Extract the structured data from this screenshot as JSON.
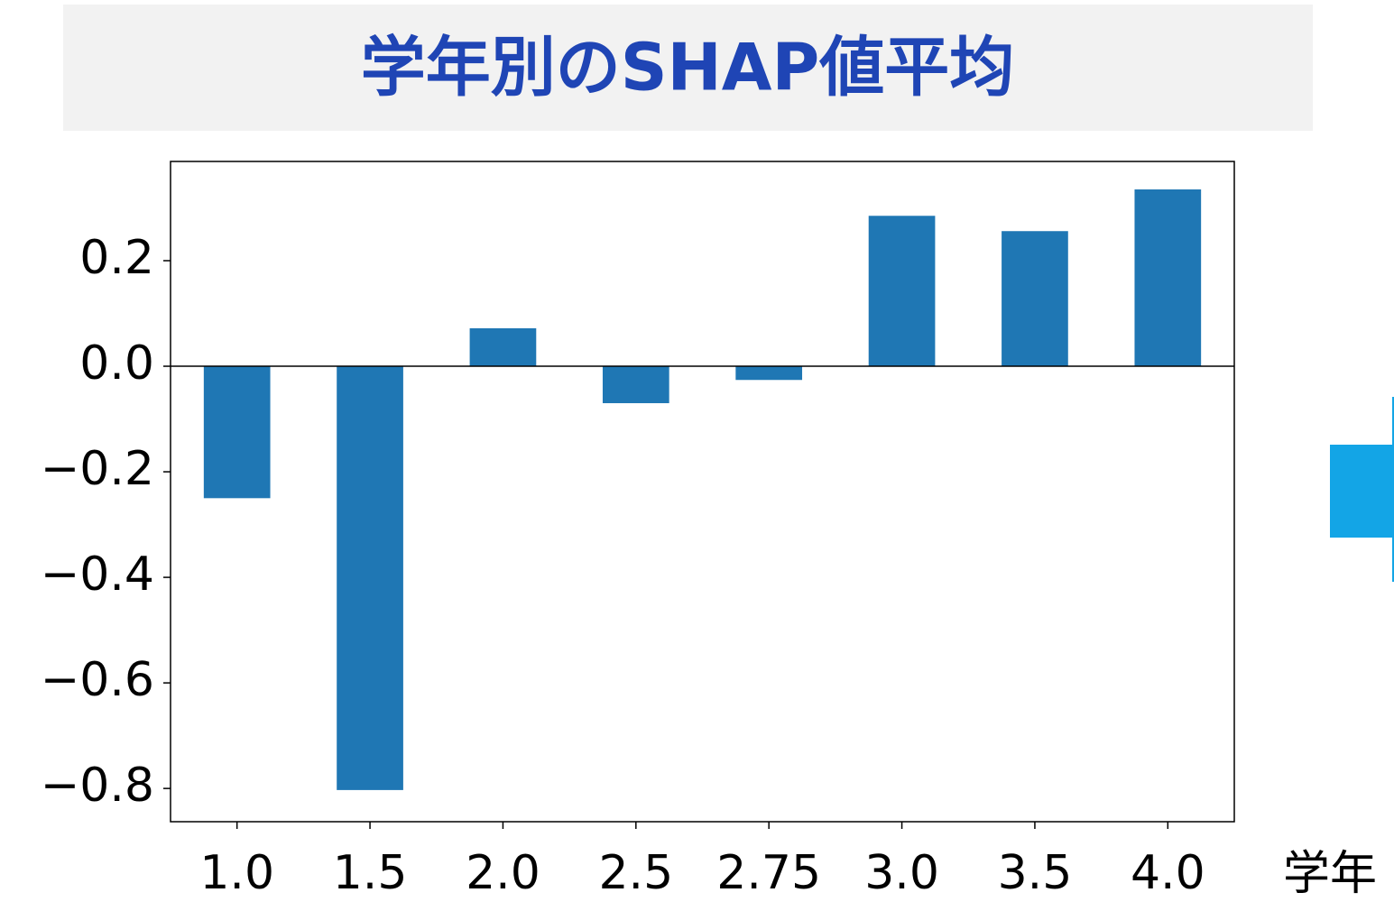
{
  "chart_data": {
    "type": "bar",
    "title": "学年別のSHAP値平均",
    "categories": [
      "1.0",
      "1.5",
      "2.0",
      "2.5",
      "2.75",
      "3.0",
      "3.5",
      "4.0"
    ],
    "values": [
      -0.25,
      -0.803,
      0.072,
      -0.07,
      -0.026,
      0.285,
      0.256,
      0.335
    ],
    "color": "#1f77b4",
    "ylim": [
      -0.863,
      0.388
    ],
    "yticks": [
      {
        "value": -0.8,
        "label": "−0.8"
      },
      {
        "value": -0.6,
        "label": "−0.6"
      },
      {
        "value": -0.4,
        "label": "−0.4"
      },
      {
        "value": -0.2,
        "label": "−0.2"
      },
      {
        "value": 0,
        "label": "0.0"
      },
      0.2
    ],
    "xlabel": "学年",
    "zero_line": true
  }
}
